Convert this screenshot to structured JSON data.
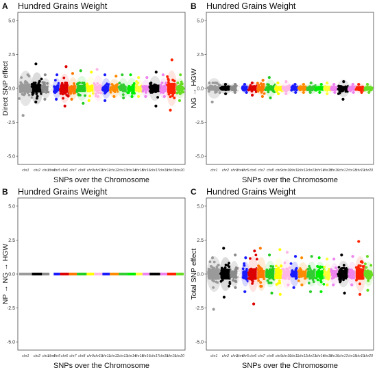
{
  "chart_data": [
    {
      "panel": "A",
      "type": "scatter",
      "title": "Hundred Grains Weight",
      "xlabel": "SNPs over the Chromosome",
      "ylabel": "Direct SNP effect",
      "ylim": [
        -5.6,
        5.6
      ],
      "yticks": [
        -5.0,
        -2.5,
        0.0,
        2.5,
        5.0
      ],
      "grid": false,
      "categories": [
        "chr1",
        "chr2",
        "chr3",
        "chr4",
        "chr5",
        "chr6",
        "chr7",
        "chr8",
        "chr9",
        "chr10",
        "chr11",
        "chr12",
        "chr13",
        "chr14",
        "chr15",
        "chr16",
        "chr17",
        "chr18",
        "chr19",
        "chr20"
      ],
      "ranges": [
        [
          -2.0,
          1.0
        ],
        [
          -1.0,
          1.8
        ],
        [
          -0.8,
          1.0
        ],
        [
          -0.3,
          0.4
        ],
        [
          -0.8,
          1.0
        ],
        [
          -1.3,
          1.6
        ],
        [
          -0.8,
          1.1
        ],
        [
          -1.1,
          1.3
        ],
        [
          -0.9,
          1.2
        ],
        [
          -0.6,
          1.4
        ],
        [
          -0.9,
          1.0
        ],
        [
          -0.6,
          0.9
        ],
        [
          -0.7,
          1.0
        ],
        [
          -0.6,
          1.0
        ],
        [
          -0.6,
          0.8
        ],
        [
          -0.6,
          0.8
        ],
        [
          -1.3,
          1.2
        ],
        [
          -0.6,
          1.0
        ],
        [
          -1.6,
          2.1
        ],
        [
          -0.9,
          1.0
        ]
      ]
    },
    {
      "panel": "B",
      "type": "scatter",
      "title": "Hundred Grains Weight",
      "xlabel": "SNPs over the Chromosome",
      "ylabel": "NG → HGW",
      "ylim": [
        -5.6,
        5.6
      ],
      "yticks": [
        -5.0,
        -2.5,
        0.0,
        2.5,
        5.0
      ],
      "grid": false,
      "categories": [
        "chr1",
        "chr2",
        "chr3",
        "chr4",
        "chr5",
        "chr6",
        "chr7",
        "chr8",
        "chr9",
        "chr10",
        "chr11",
        "chr12",
        "chr13",
        "chr14",
        "chr15",
        "chr16",
        "chr17",
        "chr18",
        "chr19",
        "chr20"
      ],
      "ranges": [
        [
          -1.0,
          0.4
        ],
        [
          -0.4,
          0.3
        ],
        [
          -0.3,
          0.3
        ],
        [
          -0.2,
          0.2
        ],
        [
          -0.3,
          0.3
        ],
        [
          -0.5,
          0.4
        ],
        [
          -0.6,
          0.6
        ],
        [
          -0.7,
          0.8
        ],
        [
          -0.4,
          0.4
        ],
        [
          -0.4,
          0.5
        ],
        [
          -0.3,
          0.3
        ],
        [
          -0.3,
          0.3
        ],
        [
          -0.3,
          0.4
        ],
        [
          -0.3,
          0.3
        ],
        [
          -0.4,
          0.4
        ],
        [
          -0.3,
          0.3
        ],
        [
          -0.8,
          0.5
        ],
        [
          -0.3,
          0.3
        ],
        [
          -0.3,
          0.3
        ],
        [
          -0.3,
          0.3
        ]
      ]
    },
    {
      "panel": "B",
      "type": "scatter",
      "title": "Hundred Grains Weight",
      "xlabel": "SNPs over the Chromosome",
      "ylabel": "NP → NG → HGW",
      "ylim": [
        -5.6,
        5.6
      ],
      "yticks": [
        -5.0,
        -2.5,
        0.0,
        2.5,
        5.0
      ],
      "grid": false,
      "categories": [
        "chr1",
        "chr2",
        "chr3",
        "chr4",
        "chr5",
        "chr6",
        "chr7",
        "chr8",
        "chr9",
        "chr10",
        "chr11",
        "chr12",
        "chr13",
        "chr14",
        "chr15",
        "chr16",
        "chr17",
        "chr18",
        "chr19",
        "chr20"
      ],
      "ranges": [
        [
          -0.05,
          0.05
        ],
        [
          -0.05,
          0.05
        ],
        [
          -0.05,
          0.05
        ],
        [
          -0.05,
          0.05
        ],
        [
          -0.05,
          0.05
        ],
        [
          -0.05,
          0.05
        ],
        [
          -0.05,
          0.05
        ],
        [
          -0.05,
          0.05
        ],
        [
          -0.05,
          0.05
        ],
        [
          -0.05,
          0.05
        ],
        [
          -0.05,
          0.05
        ],
        [
          -0.05,
          0.05
        ],
        [
          -0.05,
          0.05
        ],
        [
          -0.05,
          0.05
        ],
        [
          -0.05,
          0.05
        ],
        [
          -0.05,
          0.05
        ],
        [
          -0.05,
          0.05
        ],
        [
          -0.05,
          0.05
        ],
        [
          -0.05,
          0.05
        ],
        [
          -0.05,
          0.05
        ]
      ]
    },
    {
      "panel": "C",
      "type": "scatter",
      "title": "Hundred Grains Weight",
      "xlabel": "SNPs over the Chromosome",
      "ylabel": "Total SNP effect",
      "ylim": [
        -5.6,
        5.6
      ],
      "yticks": [
        -5.0,
        -2.5,
        0.0,
        2.5,
        5.0
      ],
      "grid": false,
      "categories": [
        "chr1",
        "chr2",
        "chr3",
        "chr4",
        "chr5",
        "chr6",
        "chr7",
        "chr8",
        "chr9",
        "chr10",
        "chr11",
        "chr12",
        "chr13",
        "chr14",
        "chr15",
        "chr16",
        "chr17",
        "chr18",
        "chr19",
        "chr20"
      ],
      "ranges": [
        [
          -2.6,
          1.2
        ],
        [
          -1.7,
          1.9
        ],
        [
          -1.0,
          1.4
        ],
        [
          -0.4,
          0.6
        ],
        [
          -1.3,
          1.2
        ],
        [
          -2.2,
          1.7
        ],
        [
          -0.9,
          1.9
        ],
        [
          -1.4,
          1.4
        ],
        [
          -1.5,
          1.8
        ],
        [
          -0.8,
          1.6
        ],
        [
          -1.0,
          1.3
        ],
        [
          -0.8,
          1.2
        ],
        [
          -1.3,
          1.3
        ],
        [
          -1.3,
          1.2
        ],
        [
          -0.8,
          1.1
        ],
        [
          -0.8,
          1.1
        ],
        [
          -1.4,
          1.4
        ],
        [
          -0.8,
          1.3
        ],
        [
          -1.5,
          2.4
        ],
        [
          -1.2,
          1.3
        ]
      ]
    }
  ],
  "chr_colors": [
    "#9a9a9a",
    "#000000",
    "#8a8a8a",
    "#ffffff",
    "#1a1aff",
    "#dd0000",
    "#ff7700",
    "#22cc22",
    "#ffff00",
    "#ffb6e6",
    "#1a1aff",
    "#ff8c00",
    "#33cc33",
    "#00ee00",
    "#ffff33",
    "#ee82ee",
    "#000000",
    "#ee82ee",
    "#ff2200",
    "#66dd22"
  ],
  "chr_halo": [
    "#cfcfcf",
    "#bdbdbd",
    "#cfcfcf",
    "#fbe3ee",
    "#b7b7ff",
    "#ffcccc",
    "#ffd9b3",
    "#c9f2c9",
    "#ffffcc",
    "#ffe3f2",
    "#b7b7ff",
    "#ffdcb3",
    "#c9f2c9",
    "#c9f7c9",
    "#ffffcc",
    "#f8d7f8",
    "#cfcfcf",
    "#f8d7f8",
    "#ffd0c7",
    "#d5f5c0"
  ],
  "chr_widths": [
    1.7,
    1.35,
    1.0,
    0.55,
    0.85,
    1.2,
    1.05,
    1.3,
    1.0,
    1.1,
    1.0,
    1.2,
    1.15,
    1.1,
    0.9,
    0.95,
    1.4,
    0.95,
    1.2,
    1.0
  ]
}
